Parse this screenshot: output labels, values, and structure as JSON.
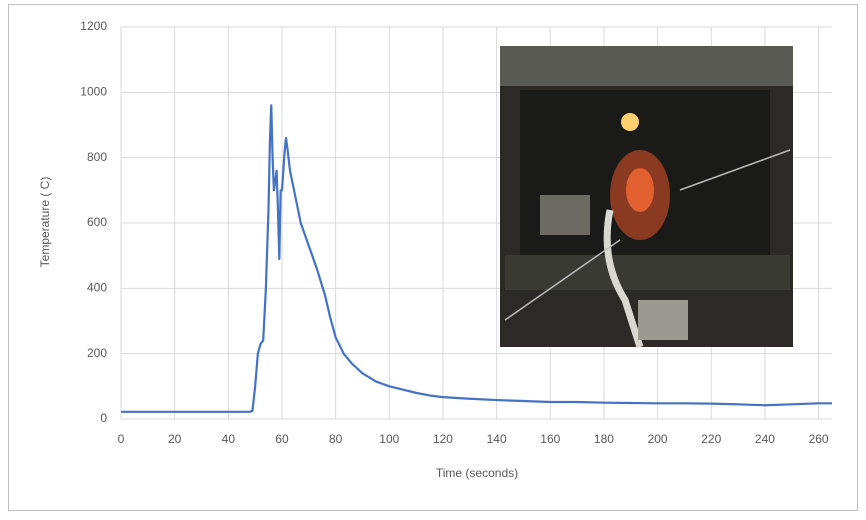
{
  "chart_data": {
    "type": "line",
    "x_label": "Time (seconds)",
    "y_label": "Temperature ( C)",
    "x": [
      0,
      10,
      20,
      30,
      40,
      48,
      49,
      50,
      51,
      52,
      53,
      54,
      55,
      55.5,
      56,
      56.5,
      57,
      58,
      58.5,
      59,
      59.5,
      60,
      61,
      61.5,
      62,
      63,
      64,
      65,
      67,
      70,
      73,
      76,
      78,
      80,
      83,
      86,
      90,
      95,
      100,
      105,
      110,
      115,
      120,
      130,
      140,
      150,
      160,
      170,
      180,
      190,
      200,
      210,
      220,
      230,
      240,
      250,
      260,
      265
    ],
    "values": [
      22,
      22,
      22,
      22,
      22,
      22,
      25,
      100,
      200,
      230,
      240,
      400,
      650,
      850,
      960,
      800,
      700,
      760,
      640,
      490,
      700,
      700,
      820,
      860,
      830,
      760,
      720,
      680,
      600,
      530,
      460,
      380,
      310,
      250,
      200,
      170,
      140,
      115,
      100,
      90,
      80,
      72,
      67,
      62,
      58,
      55,
      52,
      52,
      50,
      49,
      48,
      48,
      47,
      45,
      42,
      45,
      48,
      48
    ],
    "color": "#4472c4",
    "xlim": [
      0,
      265
    ],
    "xticks": [
      0,
      20,
      40,
      60,
      80,
      100,
      120,
      140,
      160,
      180,
      200,
      220,
      240,
      260
    ],
    "ylim": [
      0,
      1200
    ],
    "yticks": [
      0,
      200,
      400,
      600,
      800,
      1000,
      1200
    ],
    "grid": true
  }
}
